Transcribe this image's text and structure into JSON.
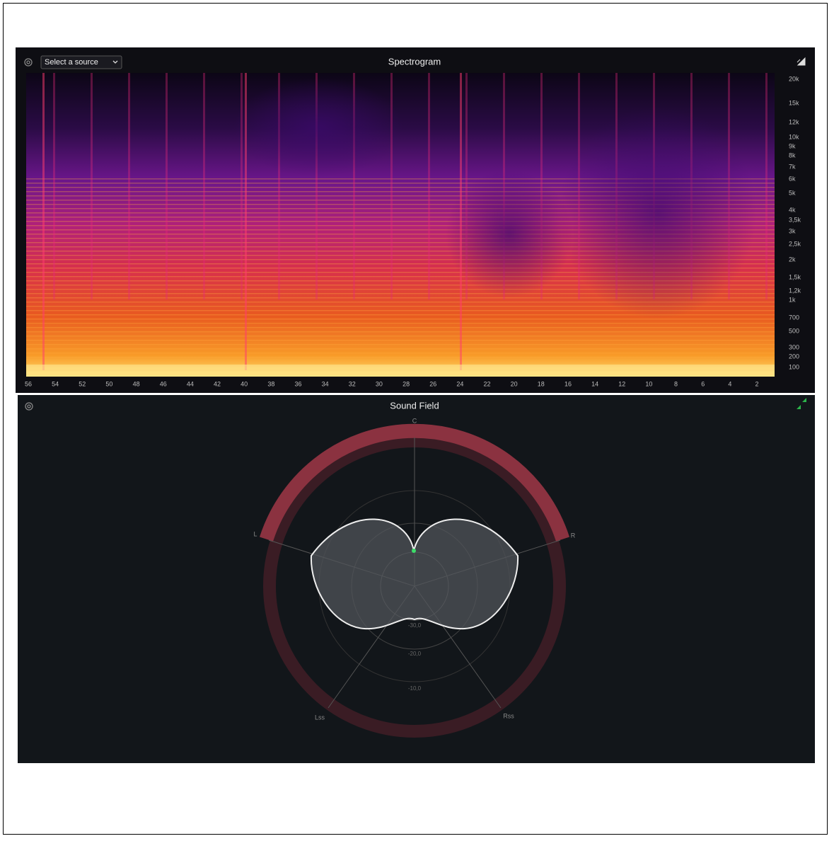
{
  "spectrogram": {
    "title": "Spectrogram",
    "source_select": "Select a source",
    "frequency_labels": [
      "20k",
      "15k",
      "12k",
      "10k",
      "9k",
      "8k",
      "7k",
      "6k",
      "5k",
      "4k",
      "3,5k",
      "3k",
      "2,5k",
      "2k",
      "1,5k",
      "1,2k",
      "1k",
      "700",
      "500",
      "300",
      "200",
      "100"
    ],
    "time_labels": [
      "56",
      "54",
      "52",
      "50",
      "48",
      "46",
      "44",
      "42",
      "40",
      "38",
      "36",
      "34",
      "32",
      "30",
      "28",
      "26",
      "24",
      "22",
      "20",
      "18",
      "16",
      "14",
      "12",
      "10",
      "8",
      "6",
      "4",
      "2"
    ]
  },
  "sound_field": {
    "title": "Sound Field",
    "channels": {
      "center": "C",
      "left": "L",
      "right": "R",
      "left_surround": "Lss",
      "right_surround": "Rss"
    },
    "ring_labels": [
      "-30,0",
      "-20,0",
      "-10,0"
    ]
  }
}
